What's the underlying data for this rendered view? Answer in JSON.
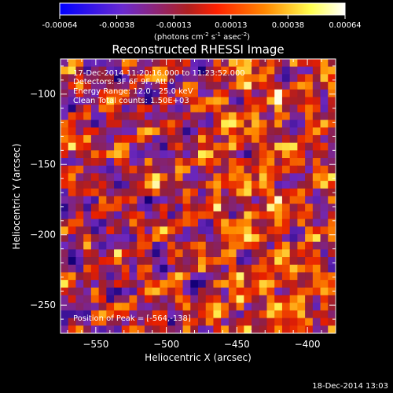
{
  "chart_data": {
    "type": "heatmap",
    "title": "Reconstructed RHESSI Image",
    "xlabel": "Heliocentric X (arcsec)",
    "ylabel": "Heliocentric Y (arcsec)",
    "xlim": [
      -575,
      -380
    ],
    "ylim": [
      -270,
      -75
    ],
    "x_ticks": [
      -550,
      -500,
      -450,
      -400
    ],
    "y_ticks": [
      -100,
      -150,
      -200,
      -250
    ],
    "colorbar": {
      "label_main": "(photons cm",
      "label_exp1": "-2",
      "label_mid": " s",
      "label_exp2": "-1",
      "label_tail": " asec",
      "label_exp3": "-2",
      "label_close": ")",
      "range": [
        -0.00064,
        0.00064
      ],
      "ticks": [
        "-0.00064",
        "-0.00038",
        "-0.00013",
        "0.00013",
        "0.00038",
        "0.00064"
      ],
      "colors": [
        "#0000ff",
        "#7020c0",
        "#c02010",
        "#ff2000",
        "#ff8800",
        "#ffff60",
        "#ffffff"
      ]
    },
    "annotations": {
      "time_range": "17-Dec-2014 11:20:16.000 to 11:23:52.000",
      "detectors": "Detectors: 3F 6F 9F, Att 0",
      "energy": "Energy Range: 12.0 - 25.0 keV",
      "clean": "Clean    Total counts: 1.50E+03",
      "peak": "Position of Peak = [-564,-138]"
    },
    "peak_position": [
      -564,
      -138
    ],
    "heatmap_grid": {
      "nx": 36,
      "ny": 36
    }
  },
  "footer": {
    "timestamp": "18-Dec-2014 13:03"
  }
}
